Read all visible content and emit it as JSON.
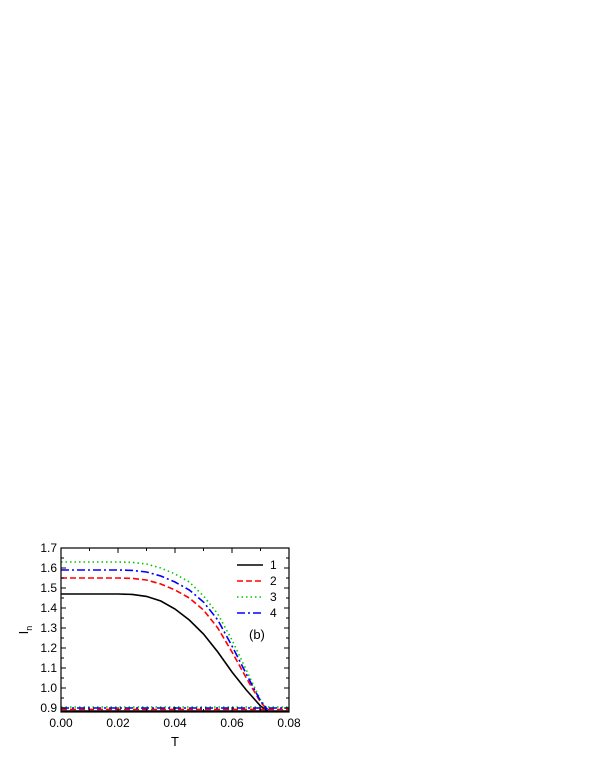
{
  "chart_data": {
    "type": "line",
    "xlabel": "T",
    "ylabel": "I",
    "ylabel_sub": "n",
    "panel_label": "(b)",
    "xlim": [
      0.0,
      0.08
    ],
    "ylim": [
      0.88,
      1.7
    ],
    "x_ticks": [
      "0.00",
      "0.02",
      "0.04",
      "0.06",
      "0.08"
    ],
    "x_tick_values": [
      0.0,
      0.02,
      0.04,
      0.06,
      0.08
    ],
    "y_ticks": [
      "0.9",
      "1.0",
      "1.1",
      "1.2",
      "1.3",
      "1.4",
      "1.5",
      "1.6",
      "1.7"
    ],
    "y_tick_values": [
      0.9,
      1.0,
      1.1,
      1.2,
      1.3,
      1.4,
      1.5,
      1.6,
      1.7
    ],
    "legend_position": "top-right",
    "series": [
      {
        "name": "1",
        "color": "#000000",
        "dash": "solid",
        "upper": {
          "x": [
            0.0,
            0.02,
            0.025,
            0.03,
            0.035,
            0.04,
            0.045,
            0.05,
            0.055,
            0.06,
            0.065,
            0.07,
            0.0725
          ],
          "y": [
            1.47,
            1.47,
            1.468,
            1.458,
            1.435,
            1.395,
            1.34,
            1.27,
            1.18,
            1.08,
            0.99,
            0.91,
            0.885
          ]
        },
        "lower": {
          "x": [
            0.0,
            0.08
          ],
          "y": [
            0.885,
            0.885
          ]
        }
      },
      {
        "name": "2",
        "color": "#ff0000",
        "dash": "dashed",
        "upper": {
          "x": [
            0.0,
            0.02,
            0.025,
            0.03,
            0.035,
            0.04,
            0.045,
            0.05,
            0.055,
            0.06,
            0.065,
            0.07,
            0.0725
          ],
          "y": [
            1.55,
            1.55,
            1.548,
            1.54,
            1.52,
            1.49,
            1.45,
            1.39,
            1.3,
            1.18,
            1.05,
            0.93,
            0.89
          ]
        },
        "lower": {
          "x": [
            0.0,
            0.08
          ],
          "y": [
            0.893,
            0.893
          ]
        }
      },
      {
        "name": "3",
        "color": "#00c800",
        "dash": "dotted",
        "upper": {
          "x": [
            0.0,
            0.02,
            0.025,
            0.03,
            0.035,
            0.04,
            0.045,
            0.05,
            0.055,
            0.06,
            0.065,
            0.07,
            0.0725
          ],
          "y": [
            1.63,
            1.63,
            1.628,
            1.62,
            1.6,
            1.57,
            1.53,
            1.46,
            1.37,
            1.24,
            1.09,
            0.94,
            0.895
          ]
        },
        "lower": {
          "x": [
            0.0,
            0.08
          ],
          "y": [
            0.905,
            0.905
          ]
        }
      },
      {
        "name": "4",
        "color": "#0000ff",
        "dash": "dashdot",
        "upper": {
          "x": [
            0.0,
            0.02,
            0.025,
            0.03,
            0.035,
            0.04,
            0.045,
            0.05,
            0.055,
            0.06,
            0.065,
            0.07,
            0.0725
          ],
          "y": [
            1.59,
            1.59,
            1.588,
            1.58,
            1.56,
            1.53,
            1.49,
            1.43,
            1.34,
            1.21,
            1.07,
            0.935,
            0.892
          ]
        },
        "lower": {
          "x": [
            0.0,
            0.08
          ],
          "y": [
            0.9,
            0.9
          ]
        }
      }
    ]
  }
}
